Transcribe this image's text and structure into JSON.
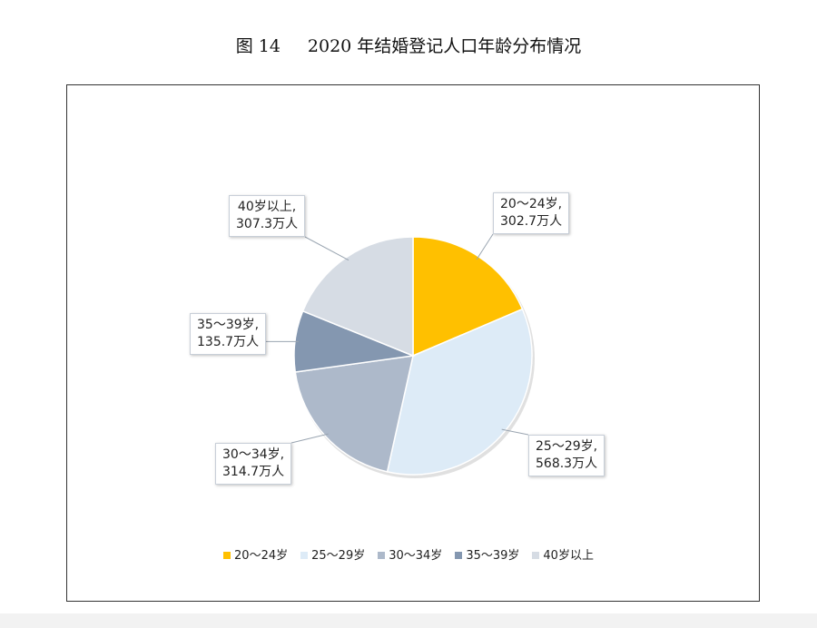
{
  "figure": {
    "number": "图 14",
    "title": "2020 年结婚登记人口年龄分布情况"
  },
  "chart_data": {
    "type": "pie",
    "title": "2020 年结婚登记人口年龄分布情况",
    "unit": "万人",
    "slices": [
      {
        "name": "20～24岁",
        "value": 302.7,
        "label_line1": "20～24岁,",
        "label_line2": "302.7万人",
        "color": "#FFC000"
      },
      {
        "name": "25～29岁",
        "value": 568.3,
        "label_line1": "25～29岁,",
        "label_line2": "568.3万人",
        "color": "#DDEBF7"
      },
      {
        "name": "30～34岁",
        "value": 314.7,
        "label_line1": "30～34岁,",
        "label_line2": "314.7万人",
        "color": "#ADB9CA"
      },
      {
        "name": "35～39岁",
        "value": 135.7,
        "label_line1": "35～39岁,",
        "label_line2": "135.7万人",
        "color": "#8497B0"
      },
      {
        "name": "40岁以上",
        "value": 307.3,
        "label_line1": "40岁以上,",
        "label_line2": "307.3万人",
        "color": "#D6DCE4"
      }
    ],
    "legend_position": "bottom"
  }
}
